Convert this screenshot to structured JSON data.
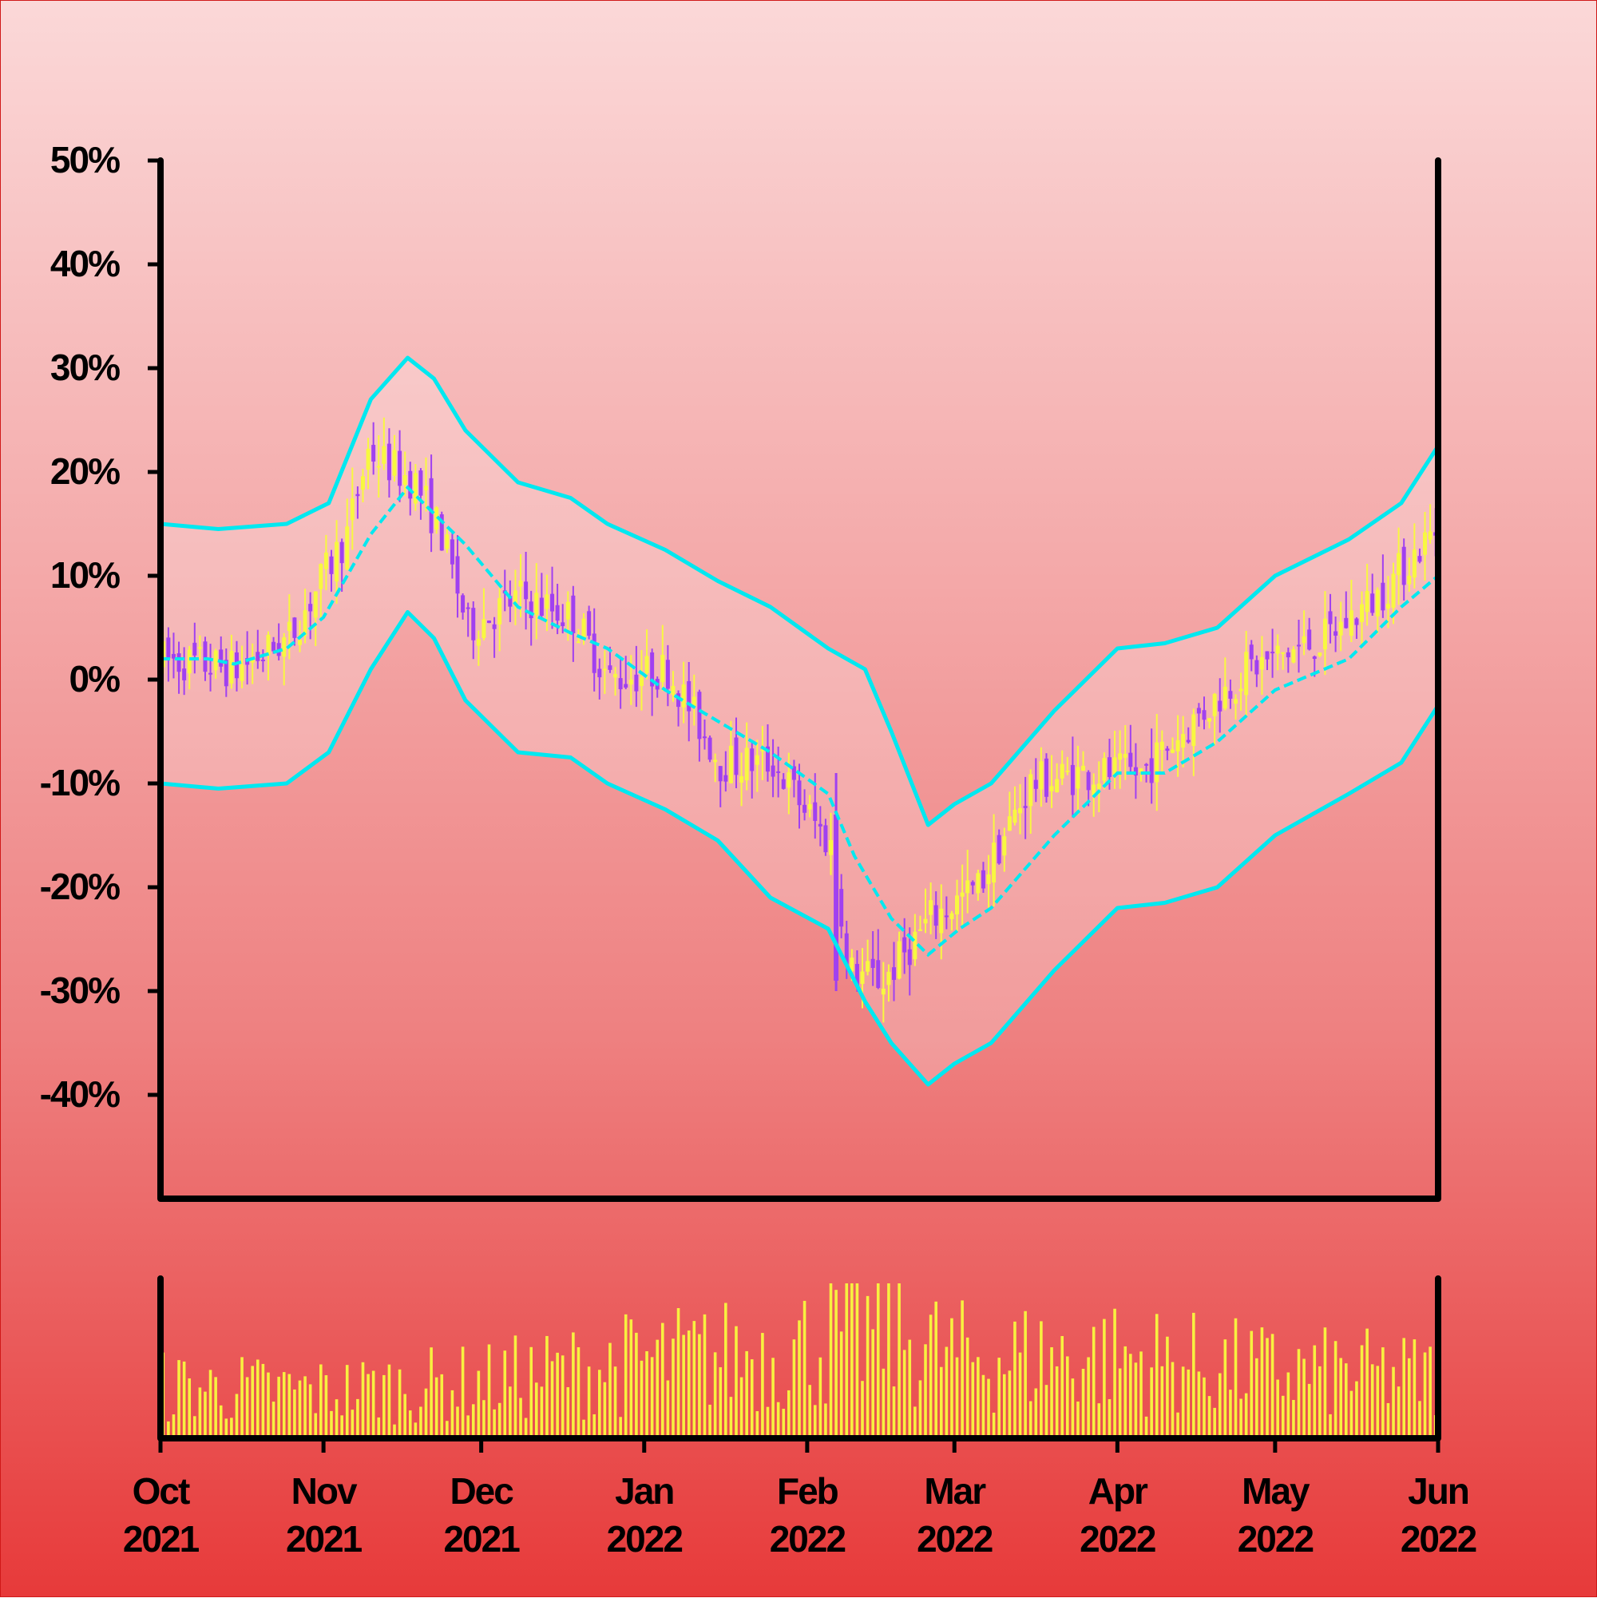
{
  "chart_data": {
    "type": "candlestick",
    "y_axis": {
      "ticks": [
        50,
        40,
        30,
        20,
        10,
        0,
        -10,
        -20,
        -30,
        -40
      ],
      "tick_labels": [
        "50%",
        "40%",
        "30%",
        "20%",
        "10%",
        "0%",
        "-10%",
        "-20%",
        "-30%",
        "-40%"
      ],
      "ylim": [
        -50,
        50
      ]
    },
    "x_axis": {
      "ticks": [
        "2021-10-01",
        "2021-11-01",
        "2021-12-01",
        "2022-01-01",
        "2022-02-01",
        "2022-03-01",
        "2022-04-01",
        "2022-05-01",
        "2022-06-01"
      ],
      "tick_labels_month": [
        "Oct",
        "Nov",
        "Dec",
        "Jan",
        "Feb",
        "Mar",
        "Apr",
        "May",
        "Jun"
      ],
      "tick_labels_year": [
        "2021",
        "2021",
        "2021",
        "2022",
        "2022",
        "2022",
        "2022",
        "2022",
        "2022"
      ],
      "xlim": [
        "2021-10-01",
        "2022-06-01"
      ]
    },
    "price_trend": [
      [
        "2021-10-01",
        2
      ],
      [
        "2021-10-15",
        1
      ],
      [
        "2021-10-25",
        4
      ],
      [
        "2021-11-05",
        14
      ],
      [
        "2021-11-09",
        22
      ],
      [
        "2021-11-18",
        19
      ],
      [
        "2021-11-23",
        14
      ],
      [
        "2021-11-28",
        5
      ],
      [
        "2021-12-08",
        8
      ],
      [
        "2021-12-18",
        6
      ],
      [
        "2021-12-25",
        0
      ],
      [
        "2022-01-05",
        1
      ],
      [
        "2022-01-15",
        -8
      ],
      [
        "2022-01-25",
        -8
      ],
      [
        "2022-02-05",
        -16
      ],
      [
        "2022-02-07",
        -22
      ],
      [
        "2022-02-08",
        -28
      ],
      [
        "2022-02-15",
        -29
      ],
      [
        "2022-02-24",
        -23
      ],
      [
        "2022-03-05",
        -20
      ],
      [
        "2022-03-15",
        -10
      ],
      [
        "2022-03-25",
        -9
      ],
      [
        "2022-04-05",
        -9
      ],
      [
        "2022-04-15",
        -4
      ],
      [
        "2022-04-25",
        1
      ],
      [
        "2022-05-10",
        4
      ],
      [
        "2022-05-20",
        8
      ],
      [
        "2022-06-01",
        15
      ]
    ],
    "bands": {
      "color": "#00e8f0",
      "middle_dashed": [
        [
          "2021-10-01",
          2
        ],
        [
          "2021-10-10",
          2
        ],
        [
          "2021-10-15",
          1.5
        ],
        [
          "2021-10-25",
          3
        ],
        [
          "2021-11-01",
          6
        ],
        [
          "2021-11-10",
          14
        ],
        [
          "2021-11-17",
          18.5
        ],
        [
          "2021-11-22",
          16
        ],
        [
          "2021-11-28",
          13
        ],
        [
          "2021-12-08",
          7
        ],
        [
          "2021-12-18",
          4.5
        ],
        [
          "2021-12-25",
          3
        ],
        [
          "2022-01-05",
          -1
        ],
        [
          "2022-01-15",
          -4
        ],
        [
          "2022-01-25",
          -7
        ],
        [
          "2022-02-05",
          -11
        ],
        [
          "2022-02-10",
          -17
        ],
        [
          "2022-02-17",
          -23
        ],
        [
          "2022-02-24",
          -26.5
        ],
        [
          "2022-03-02",
          -24
        ],
        [
          "2022-03-08",
          -22
        ],
        [
          "2022-03-20",
          -15
        ],
        [
          "2022-04-01",
          -9
        ],
        [
          "2022-04-10",
          -9
        ],
        [
          "2022-04-20",
          -6
        ],
        [
          "2022-05-01",
          -1
        ],
        [
          "2022-05-15",
          2
        ],
        [
          "2022-05-25",
          7
        ],
        [
          "2022-06-01",
          10
        ]
      ],
      "upper": [
        [
          "2021-10-01",
          15
        ],
        [
          "2021-10-12",
          14.5
        ],
        [
          "2021-10-25",
          15
        ],
        [
          "2021-11-02",
          17
        ],
        [
          "2021-11-10",
          27
        ],
        [
          "2021-11-17",
          31
        ],
        [
          "2021-11-22",
          29
        ],
        [
          "2021-11-28",
          24
        ],
        [
          "2021-12-08",
          19
        ],
        [
          "2021-12-18",
          17.5
        ],
        [
          "2021-12-25",
          15
        ],
        [
          "2022-01-05",
          12.5
        ],
        [
          "2022-01-15",
          9.5
        ],
        [
          "2022-01-25",
          7
        ],
        [
          "2022-02-05",
          3
        ],
        [
          "2022-02-12",
          1
        ],
        [
          "2022-02-17",
          -5
        ],
        [
          "2022-02-24",
          -14
        ],
        [
          "2022-03-01",
          -12
        ],
        [
          "2022-03-08",
          -10
        ],
        [
          "2022-03-20",
          -3
        ],
        [
          "2022-04-01",
          3
        ],
        [
          "2022-04-10",
          3.5
        ],
        [
          "2022-04-20",
          5
        ],
        [
          "2022-05-01",
          10
        ],
        [
          "2022-05-15",
          13.5
        ],
        [
          "2022-05-25",
          17
        ],
        [
          "2022-06-01",
          22.5
        ]
      ],
      "lower": [
        [
          "2021-10-01",
          -10
        ],
        [
          "2021-10-12",
          -10.5
        ],
        [
          "2021-10-25",
          -10
        ],
        [
          "2021-11-02",
          -7
        ],
        [
          "2021-11-10",
          1
        ],
        [
          "2021-11-17",
          6.5
        ],
        [
          "2021-11-22",
          4
        ],
        [
          "2021-11-28",
          -2
        ],
        [
          "2021-12-08",
          -7
        ],
        [
          "2021-12-18",
          -7.5
        ],
        [
          "2021-12-25",
          -10
        ],
        [
          "2022-01-05",
          -12.5
        ],
        [
          "2022-01-15",
          -15.5
        ],
        [
          "2022-01-25",
          -21
        ],
        [
          "2022-02-05",
          -24
        ],
        [
          "2022-02-12",
          -31
        ],
        [
          "2022-02-17",
          -35
        ],
        [
          "2022-02-24",
          -39
        ],
        [
          "2022-03-01",
          -37
        ],
        [
          "2022-03-08",
          -35
        ],
        [
          "2022-03-20",
          -28
        ],
        [
          "2022-04-01",
          -22
        ],
        [
          "2022-04-10",
          -21.5
        ],
        [
          "2022-04-20",
          -20
        ],
        [
          "2022-05-01",
          -15
        ],
        [
          "2022-05-15",
          -11
        ],
        [
          "2022-05-25",
          -8
        ],
        [
          "2022-06-01",
          -2.5
        ]
      ]
    },
    "spike": {
      "date": "2022-02-06",
      "high": -9,
      "low": -30
    },
    "candle_colors": {
      "up": "#f8f840",
      "down": "#a040f0"
    },
    "volume": {
      "color": "#f8f040",
      "level": [
        [
          "2021-10-01",
          0.35
        ],
        [
          "2021-11-01",
          0.32
        ],
        [
          "2021-12-01",
          0.38
        ],
        [
          "2022-01-01",
          0.52
        ],
        [
          "2022-01-25",
          0.58
        ],
        [
          "2022-02-15",
          0.74
        ],
        [
          "2022-03-01",
          0.55
        ],
        [
          "2022-04-01",
          0.55
        ],
        [
          "2022-05-01",
          0.45
        ],
        [
          "2022-06-01",
          0.42
        ]
      ]
    },
    "grid": false,
    "legend": "none"
  }
}
